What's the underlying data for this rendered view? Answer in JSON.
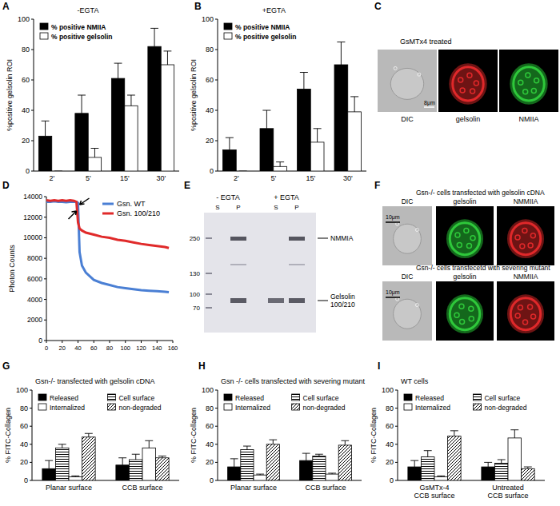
{
  "panel_labels": [
    "A",
    "B",
    "C",
    "D",
    "E",
    "F",
    "G",
    "H",
    "I"
  ],
  "chart_data": [
    {
      "type": "bar",
      "title": "-EGTA",
      "ylabel": "%positive gelsolin ROI",
      "categories": [
        "2'",
        "5'",
        "15'",
        "30'"
      ],
      "series": [
        {
          "name": "% positive NMIIA",
          "color": "#000000",
          "values": [
            23,
            38,
            61,
            82
          ],
          "errors": [
            10,
            12,
            10,
            12
          ]
        },
        {
          "name": "% positive gelsolin",
          "color": "#ffffff",
          "values": [
            0,
            9,
            43,
            70
          ],
          "errors": [
            0,
            6,
            7,
            9
          ]
        }
      ],
      "ylim": [
        0,
        100
      ],
      "yticks": [
        0,
        20,
        40,
        60,
        80,
        100
      ],
      "legend": "upper left"
    },
    {
      "type": "bar",
      "title": "+EGTA",
      "ylabel": "%positive gelsolin ROI",
      "categories": [
        "2'",
        "5'",
        "15'",
        "30'"
      ],
      "series": [
        {
          "name": "% positive NMIIA",
          "color": "#000000",
          "values": [
            14,
            28,
            54,
            70
          ],
          "errors": [
            8,
            12,
            11,
            15
          ]
        },
        {
          "name": "% positive gelsolin",
          "color": "#ffffff",
          "values": [
            0,
            3,
            19,
            39
          ],
          "errors": [
            0,
            3,
            9,
            10
          ]
        }
      ],
      "ylim": [
        0,
        100
      ],
      "yticks": [
        0,
        20,
        40,
        60,
        80,
        100
      ],
      "legend": "upper left"
    },
    {
      "type": "line",
      "ylabel": "Photon Counts",
      "x": [
        0,
        5,
        10,
        15,
        20,
        25,
        30,
        35,
        38,
        40,
        42,
        45,
        50,
        60,
        70,
        80,
        90,
        100,
        110,
        120,
        130,
        140,
        150,
        155
      ],
      "series": [
        {
          "name": "Gsn. WT",
          "color": "#4a7fd4",
          "values": [
            13500,
            13500,
            13550,
            13500,
            13500,
            13450,
            13500,
            13500,
            13500,
            13400,
            8600,
            7300,
            6600,
            5900,
            5600,
            5400,
            5200,
            5100,
            5000,
            4900,
            4850,
            4800,
            4750,
            4700
          ]
        },
        {
          "name": "Gsn. 100/210",
          "color": "#e02a2a",
          "values": [
            13650,
            13600,
            13650,
            13600,
            13650,
            13600,
            13650,
            13600,
            13500,
            11500,
            10900,
            10700,
            10500,
            10300,
            10100,
            10000,
            9800,
            9700,
            9550,
            9400,
            9300,
            9200,
            9100,
            9000
          ]
        }
      ],
      "xlim": [
        0,
        160
      ],
      "xticks": [
        0,
        20,
        40,
        60,
        80,
        100,
        120,
        140,
        160
      ],
      "ylim": [
        0,
        14000
      ],
      "yticks": [
        0,
        2000,
        4000,
        6000,
        8000,
        10000,
        12000,
        14000
      ],
      "legend": "upper right"
    },
    {
      "type": "bar",
      "title": "Gsn-/-  transfected with gelsolin cDNA",
      "ylabel": "% FITC-Collagen",
      "categories": [
        "Planar surface",
        "CCB surface"
      ],
      "series": [
        {
          "name": "Released",
          "color": "#000000",
          "values": [
            13,
            17
          ],
          "errors": [
            9,
            8
          ]
        },
        {
          "name": "Cell surface",
          "color": "#ffffff",
          "values": [
            36,
            23
          ],
          "errors": [
            4,
            6
          ]
        },
        {
          "name": "Internalized",
          "color": "#ffffff",
          "values": [
            4,
            36
          ],
          "errors": [
            1,
            8
          ]
        },
        {
          "name": "non-degraded",
          "color": "#ffffff",
          "values": [
            48,
            25
          ],
          "errors": [
            4,
            2
          ]
        }
      ],
      "ylim": [
        0,
        100
      ],
      "yticks": [
        0,
        20,
        40,
        60,
        80,
        100
      ],
      "legend": "upper left"
    },
    {
      "type": "bar",
      "title": "Gsn -/- cells transfected with severing mutant",
      "ylabel": "% FITC-Collagen",
      "categories": [
        "Planar surface",
        "CCB surface"
      ],
      "series": [
        {
          "name": "Released",
          "color": "#000000",
          "values": [
            15,
            22
          ],
          "errors": [
            9,
            8
          ]
        },
        {
          "name": "Cell surface",
          "color": "#ffffff",
          "values": [
            34,
            27
          ],
          "errors": [
            4,
            2
          ]
        },
        {
          "name": "Internalized",
          "color": "#ffffff",
          "values": [
            6,
            7
          ],
          "errors": [
            1,
            1
          ]
        },
        {
          "name": "non-degraded",
          "color": "#ffffff",
          "values": [
            40,
            39
          ],
          "errors": [
            5,
            5
          ]
        }
      ],
      "ylim": [
        0,
        100
      ],
      "yticks": [
        0,
        20,
        40,
        60,
        80,
        100
      ],
      "legend": "upper left"
    },
    {
      "type": "bar",
      "title": "WT cells",
      "ylabel": "% FITC-Collagen",
      "categories": [
        "GsMTx-4\nCCB surface",
        "Untreated\nCCB surface"
      ],
      "series": [
        {
          "name": "Released",
          "color": "#000000",
          "values": [
            15,
            15
          ],
          "errors": [
            7,
            5
          ]
        },
        {
          "name": "Cell surface",
          "color": "#ffffff",
          "values": [
            26,
            19
          ],
          "errors": [
            7,
            4
          ]
        },
        {
          "name": "Internalized",
          "color": "#ffffff",
          "values": [
            4,
            47
          ],
          "errors": [
            1,
            9
          ]
        },
        {
          "name": "non-degraded",
          "color": "#ffffff",
          "values": [
            49,
            13
          ],
          "errors": [
            6,
            2
          ]
        }
      ],
      "ylim": [
        0,
        100
      ],
      "yticks": [
        0,
        20,
        40,
        60,
        80,
        100
      ],
      "legend": "upper left"
    }
  ],
  "panel_c": {
    "title": "GsMTx4 treated",
    "images": [
      "DIC",
      "gelsolin",
      "NMIIA"
    ],
    "scale_bar": "8μm"
  },
  "panel_e": {
    "conditions": [
      "- EGTA",
      "+ EGTA"
    ],
    "lanes": [
      "S",
      "P",
      "S",
      "P"
    ],
    "markers": [
      250,
      130,
      100,
      70
    ],
    "bands": [
      "NMMIA",
      "Gelsolin\n100/210"
    ]
  },
  "panel_f": {
    "rows": [
      {
        "title": "Gsn-/- cells transfected with gelsolin cDNA",
        "images": [
          "DIC",
          "gelsolin",
          "NMMIIA"
        ],
        "scale_bar": "10μm"
      },
      {
        "title": "Gsn-/- cells transfecetd with severing mutant",
        "images": [
          "DIC",
          "gelsolin",
          "NMMIIA"
        ],
        "scale_bar": "10μm"
      }
    ]
  }
}
